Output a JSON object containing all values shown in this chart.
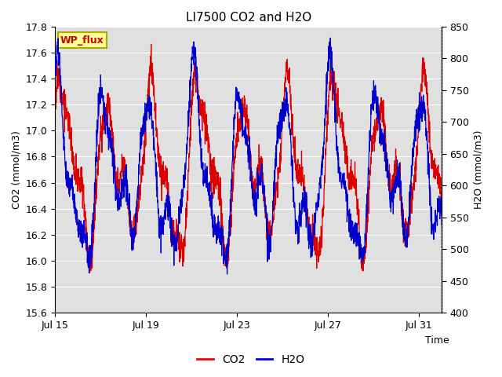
{
  "title": "LI7500 CO2 and H2O",
  "xlabel": "Time",
  "ylabel_left": "CO2 (mmol/m3)",
  "ylabel_right": "H2O (mmol/m3)",
  "ylim_left": [
    15.6,
    17.8
  ],
  "ylim_right": [
    400,
    850
  ],
  "yticks_left": [
    15.6,
    15.8,
    16.0,
    16.2,
    16.4,
    16.6,
    16.8,
    17.0,
    17.2,
    17.4,
    17.6,
    17.8
  ],
  "yticks_right": [
    400,
    450,
    500,
    550,
    600,
    650,
    700,
    750,
    800,
    850
  ],
  "xtick_labels": [
    "Jul 15",
    "Jul 19",
    "Jul 23",
    "Jul 27",
    "Jul 31"
  ],
  "xtick_positions": [
    0,
    4,
    8,
    12,
    16
  ],
  "xlim": [
    0,
    17
  ],
  "annotation_text": "WP_flux",
  "annotation_color": "#cc0000",
  "annotation_bg": "#ffff99",
  "annotation_border": "#aaaa00",
  "co2_color": "#dd0000",
  "h2o_color": "#0000cc",
  "plot_bg": "#e0e0e0",
  "grid_color": "#ffffff",
  "legend_co2_color": "red",
  "legend_h2o_color": "blue"
}
